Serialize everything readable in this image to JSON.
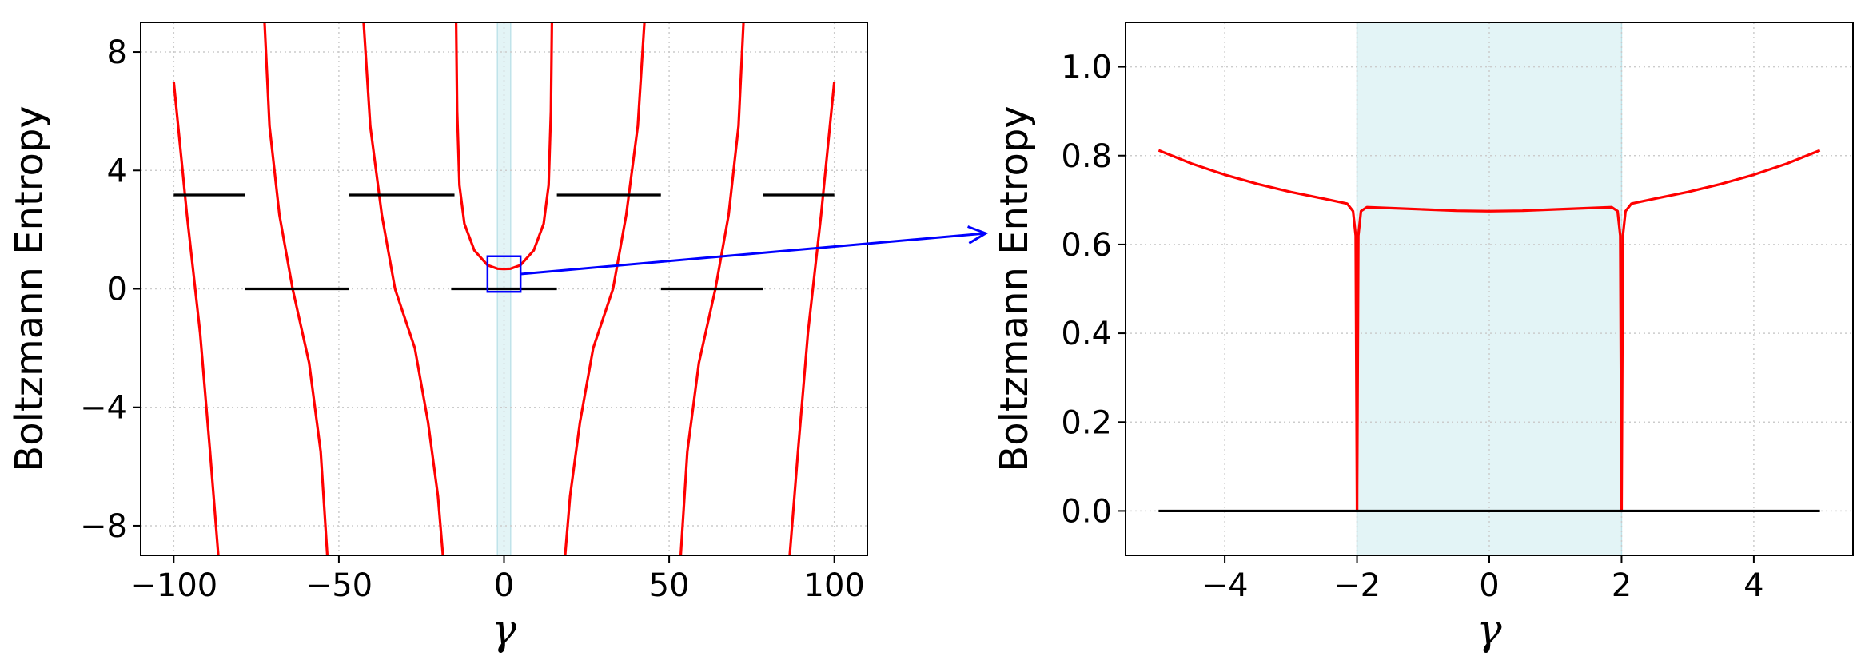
{
  "chart_data": [
    {
      "type": "line",
      "xlabel": "γ",
      "ylabel": "Boltzmann Entropy",
      "xlim": [
        -110,
        110
      ],
      "ylim": [
        -9,
        9
      ],
      "xticks": [
        -100,
        -50,
        0,
        50,
        100
      ],
      "xtick_labels": [
        "−100",
        "−50",
        "0",
        "50",
        "100"
      ],
      "yticks": [
        -8,
        -4,
        0,
        4,
        8
      ],
      "ytick_labels": [
        "−8",
        "−4",
        "0",
        "4",
        "8"
      ],
      "grid": true,
      "shaded_region": {
        "x": [
          -2,
          2
        ],
        "color": "#e3f4f6"
      },
      "series": [
        {
          "color": "#ff0000",
          "points": [
            [
              -100,
              7.0
            ],
            [
              -96,
              2.5
            ],
            [
              -92,
              -1.5
            ],
            [
              -89,
              -5.5
            ],
            [
              -86.5,
              -9.0
            ]
          ]
        },
        {
          "color": "#ff0000",
          "points": [
            [
              -72.5,
              9.0
            ],
            [
              -71,
              5.5
            ],
            [
              -68,
              2.5
            ],
            [
              -64,
              0.0
            ],
            [
              -59,
              -2.5
            ],
            [
              -55.5,
              -5.5
            ],
            [
              -53.5,
              -9.0
            ]
          ]
        },
        {
          "color": "#ff0000",
          "points": [
            [
              -42.5,
              9.0
            ],
            [
              -40.5,
              5.5
            ],
            [
              -37,
              2.5
            ],
            [
              -33,
              0.0
            ],
            [
              -27,
              -2.0
            ],
            [
              -23,
              -4.5
            ],
            [
              -20,
              -7.0
            ],
            [
              -18.5,
              -9.0
            ]
          ]
        },
        {
          "color": "#ff0000",
          "points": [
            [
              -14.5,
              9.0
            ],
            [
              -14.2,
              6.0
            ],
            [
              -13.5,
              3.5
            ],
            [
              -12,
              2.2
            ],
            [
              -9,
              1.3
            ],
            [
              -5,
              0.8
            ],
            [
              -2,
              0.68
            ],
            [
              0,
              0.67
            ],
            [
              2,
              0.68
            ],
            [
              5,
              0.8
            ],
            [
              9,
              1.3
            ],
            [
              12,
              2.2
            ],
            [
              13.5,
              3.5
            ],
            [
              14.2,
              6.0
            ],
            [
              14.5,
              9.0
            ]
          ]
        },
        {
          "color": "#ff0000",
          "points": [
            [
              18.5,
              -9.0
            ],
            [
              20,
              -7.0
            ],
            [
              23,
              -4.5
            ],
            [
              27,
              -2.0
            ],
            [
              33,
              0.0
            ],
            [
              37,
              2.5
            ],
            [
              40.5,
              5.5
            ],
            [
              42.5,
              9.0
            ]
          ]
        },
        {
          "color": "#ff0000",
          "points": [
            [
              53.5,
              -9.0
            ],
            [
              55.5,
              -5.5
            ],
            [
              59,
              -2.5
            ],
            [
              64,
              0.0
            ],
            [
              68,
              2.5
            ],
            [
              71,
              5.5
            ],
            [
              72.5,
              9.0
            ]
          ]
        },
        {
          "color": "#ff0000",
          "points": [
            [
              86.5,
              -9.0
            ],
            [
              89,
              -5.5
            ],
            [
              92,
              -1.5
            ],
            [
              96,
              2.5
            ],
            [
              100,
              7.0
            ]
          ]
        },
        {
          "color": "#000000",
          "points": [
            [
              -100,
              3.17
            ],
            [
              -78.5,
              3.17
            ]
          ]
        },
        {
          "color": "#000000",
          "points": [
            [
              -47,
              3.17
            ],
            [
              -15,
              3.17
            ]
          ]
        },
        {
          "color": "#000000",
          "points": [
            [
              16,
              3.17
            ],
            [
              47.5,
              3.17
            ]
          ]
        },
        {
          "color": "#000000",
          "points": [
            [
              78.5,
              3.17
            ],
            [
              100,
              3.17
            ]
          ]
        },
        {
          "color": "#000000",
          "points": [
            [
              -78.5,
              0
            ],
            [
              -47,
              0
            ]
          ]
        },
        {
          "color": "#000000",
          "points": [
            [
              -16,
              0
            ],
            [
              16,
              0
            ]
          ]
        },
        {
          "color": "#000000",
          "points": [
            [
              47.5,
              0
            ],
            [
              78.5,
              0
            ]
          ]
        }
      ],
      "zoom_box": {
        "x": [
          -5,
          5
        ],
        "y": [
          -0.1,
          1.1
        ],
        "color": "#0000ff"
      }
    },
    {
      "type": "line",
      "xlabel": "γ",
      "ylabel": "Boltzmann Entropy",
      "xlim": [
        -5.5,
        5.5
      ],
      "ylim": [
        -0.1,
        1.1
      ],
      "xticks": [
        -4,
        -2,
        0,
        2,
        4
      ],
      "xtick_labels": [
        "−4",
        "−2",
        "0",
        "2",
        "4"
      ],
      "yticks": [
        0.0,
        0.2,
        0.4,
        0.6,
        0.8,
        1.0
      ],
      "ytick_labels": [
        "0.0",
        "0.2",
        "0.4",
        "0.6",
        "0.8",
        "1.0"
      ],
      "grid": true,
      "shaded_region": {
        "x": [
          -2,
          2
        ],
        "color": "#e3f4f6"
      },
      "series": [
        {
          "color": "#ff0000",
          "points": [
            [
              -5.0,
              0.812
            ],
            [
              -4.5,
              0.782
            ],
            [
              -4.0,
              0.757
            ],
            [
              -3.5,
              0.736
            ],
            [
              -3.0,
              0.718
            ],
            [
              -2.5,
              0.703
            ],
            [
              -2.15,
              0.692
            ],
            [
              -2.06,
              0.675
            ],
            [
              -2.02,
              0.62
            ],
            [
              -2.0,
              0.0
            ]
          ]
        },
        {
          "color": "#ff0000",
          "points": [
            [
              -2.0,
              0.0
            ],
            [
              -1.98,
              0.62
            ],
            [
              -1.94,
              0.675
            ],
            [
              -1.85,
              0.684
            ],
            [
              -1.5,
              0.682
            ],
            [
              -1.0,
              0.679
            ],
            [
              -0.5,
              0.676
            ],
            [
              0.0,
              0.675
            ],
            [
              0.5,
              0.676
            ],
            [
              1.0,
              0.679
            ],
            [
              1.5,
              0.682
            ],
            [
              1.85,
              0.684
            ],
            [
              1.94,
              0.675
            ],
            [
              1.98,
              0.62
            ],
            [
              2.0,
              0.0
            ]
          ]
        },
        {
          "color": "#ff0000",
          "points": [
            [
              2.0,
              0.0
            ],
            [
              2.02,
              0.62
            ],
            [
              2.06,
              0.675
            ],
            [
              2.15,
              0.692
            ],
            [
              2.5,
              0.703
            ],
            [
              3.0,
              0.718
            ],
            [
              3.5,
              0.736
            ],
            [
              4.0,
              0.757
            ],
            [
              4.5,
              0.782
            ],
            [
              5.0,
              0.812
            ]
          ]
        },
        {
          "color": "#000000",
          "points": [
            [
              -5.0,
              0.0
            ],
            [
              5.0,
              0.0
            ]
          ]
        }
      ]
    }
  ]
}
